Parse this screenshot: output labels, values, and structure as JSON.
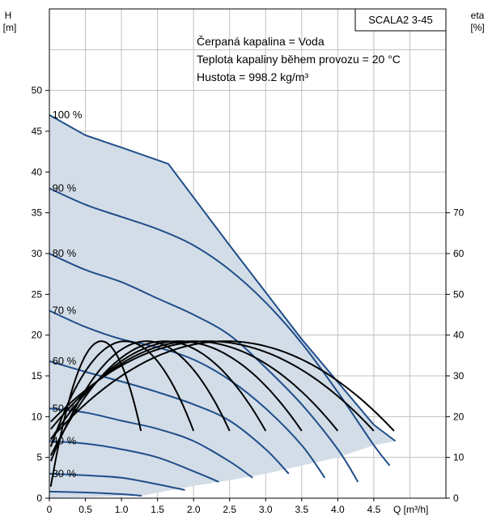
{
  "chart_data": {
    "type": "line",
    "title": "SCALA2 3-45",
    "xlabel": "Q [m³/h]",
    "ylabel": "H",
    "ylabel_unit": "[m]",
    "y2label": "eta",
    "y2label_unit": "[%]",
    "xlim": [
      0,
      5.5
    ],
    "ylim": [
      0,
      60
    ],
    "y2lim": [
      0,
      120
    ],
    "x_ticks": [
      "0",
      "0.5",
      "1.0",
      "1.5",
      "2.0",
      "2.5",
      "3.0",
      "3.5",
      "4.0",
      "4.5"
    ],
    "y_ticks": [
      "0",
      "5",
      "10",
      "15",
      "20",
      "25",
      "30",
      "35",
      "40",
      "45",
      "50"
    ],
    "y2_ticks": [
      "0",
      "10",
      "20",
      "30",
      "40",
      "50",
      "60",
      "70"
    ],
    "grid": true,
    "annotations": [
      "Čerpaná kapalina = Voda",
      "Teplota kapaliny během provozu = 20 °C",
      "Hustota = 998.2 kg/m³"
    ],
    "colors": {
      "head_curve": "#1f4e89",
      "efficiency_curve": "#000000",
      "operating_area": "#d3dde8",
      "grid": "#bfbfbf"
    },
    "head_curves": [
      {
        "name": "100 %",
        "x": [
          0,
          0.5,
          1.0,
          1.65,
          2.5,
          3.5,
          4.5,
          4.8
        ],
        "y": [
          47.0,
          44.5,
          43.0,
          41.0,
          31.0,
          19.5,
          9.0,
          7.0
        ]
      },
      {
        "name": "90 %",
        "x": [
          0,
          0.5,
          1.0,
          1.5,
          2.0,
          2.5,
          3.0,
          3.5,
          4.0,
          4.5,
          4.72
        ],
        "y": [
          38.0,
          36.0,
          34.5,
          33.0,
          31.0,
          28.0,
          24.0,
          19.0,
          13.0,
          6.5,
          4.0
        ]
      },
      {
        "name": "80 %",
        "x": [
          0,
          0.5,
          1.0,
          1.5,
          2.0,
          2.5,
          3.0,
          3.5,
          4.0,
          4.28
        ],
        "y": [
          30.0,
          28.0,
          26.5,
          24.5,
          22.5,
          20.0,
          16.0,
          11.5,
          6.0,
          2.0
        ]
      },
      {
        "name": "70 %",
        "x": [
          0,
          0.5,
          1.0,
          1.5,
          2.0,
          2.5,
          3.0,
          3.5,
          3.82
        ],
        "y": [
          23.0,
          21.0,
          19.5,
          18.5,
          17.0,
          14.5,
          11.0,
          6.5,
          2.5
        ]
      },
      {
        "name": "60 %",
        "x": [
          0,
          0.5,
          1.0,
          1.5,
          2.0,
          2.5,
          3.0,
          3.32
        ],
        "y": [
          16.8,
          15.5,
          14.3,
          13.0,
          11.5,
          9.5,
          6.0,
          3.0
        ]
      },
      {
        "name": "50 %",
        "x": [
          0,
          0.5,
          1.0,
          1.5,
          2.0,
          2.5,
          2.82
        ],
        "y": [
          11.0,
          10.5,
          9.5,
          8.5,
          7.0,
          4.5,
          2.5
        ]
      },
      {
        "name": "40 %",
        "x": [
          0,
          0.5,
          1.0,
          1.5,
          2.0,
          2.35
        ],
        "y": [
          7.0,
          6.7,
          6.0,
          5.0,
          3.3,
          2.0
        ]
      },
      {
        "name": "30 %",
        "x": [
          0,
          0.5,
          1.0,
          1.5,
          1.88
        ],
        "y": [
          3.0,
          2.8,
          2.5,
          1.7,
          1.0
        ]
      },
      {
        "name": "",
        "x": [
          0,
          0.5,
          1.0,
          1.28
        ],
        "y": [
          0.8,
          0.7,
          0.5,
          0.3
        ]
      }
    ],
    "operating_area": {
      "x": [
        0,
        0.5,
        1.0,
        1.65,
        2.5,
        3.5,
        4.5,
        4.8,
        4.5,
        4.0,
        3.5,
        3.0,
        2.5,
        2.0,
        1.28,
        0
      ],
      "y": [
        47.0,
        44.5,
        43.0,
        41.0,
        31.0,
        19.5,
        9.0,
        7.0,
        6.5,
        5.0,
        4.0,
        3.0,
        2.2,
        1.5,
        0.3,
        0
      ]
    },
    "efficiency_curves": [
      {
        "peak_x": 0.72,
        "peak_eta": 38.5,
        "end_x": 1.27,
        "end_eta": 16.5
      },
      {
        "peak_x": 1.05,
        "peak_eta": 38.5,
        "end_x": 2.0,
        "end_eta": 16.5
      },
      {
        "peak_x": 1.35,
        "peak_eta": 38.5,
        "end_x": 2.5,
        "end_eta": 16.5
      },
      {
        "peak_x": 1.6,
        "peak_eta": 38.5,
        "end_x": 3.0,
        "end_eta": 16.5
      },
      {
        "peak_x": 1.8,
        "peak_eta": 38.5,
        "end_x": 3.5,
        "end_eta": 16.5
      },
      {
        "peak_x": 2.0,
        "peak_eta": 38.5,
        "end_x": 4.0,
        "end_eta": 16.5
      },
      {
        "peak_x": 2.2,
        "peak_eta": 38.5,
        "end_x": 4.5,
        "end_eta": 16.5
      },
      {
        "peak_x": 2.45,
        "peak_eta": 38.5,
        "end_x": 4.78,
        "end_eta": 16.5
      }
    ]
  }
}
